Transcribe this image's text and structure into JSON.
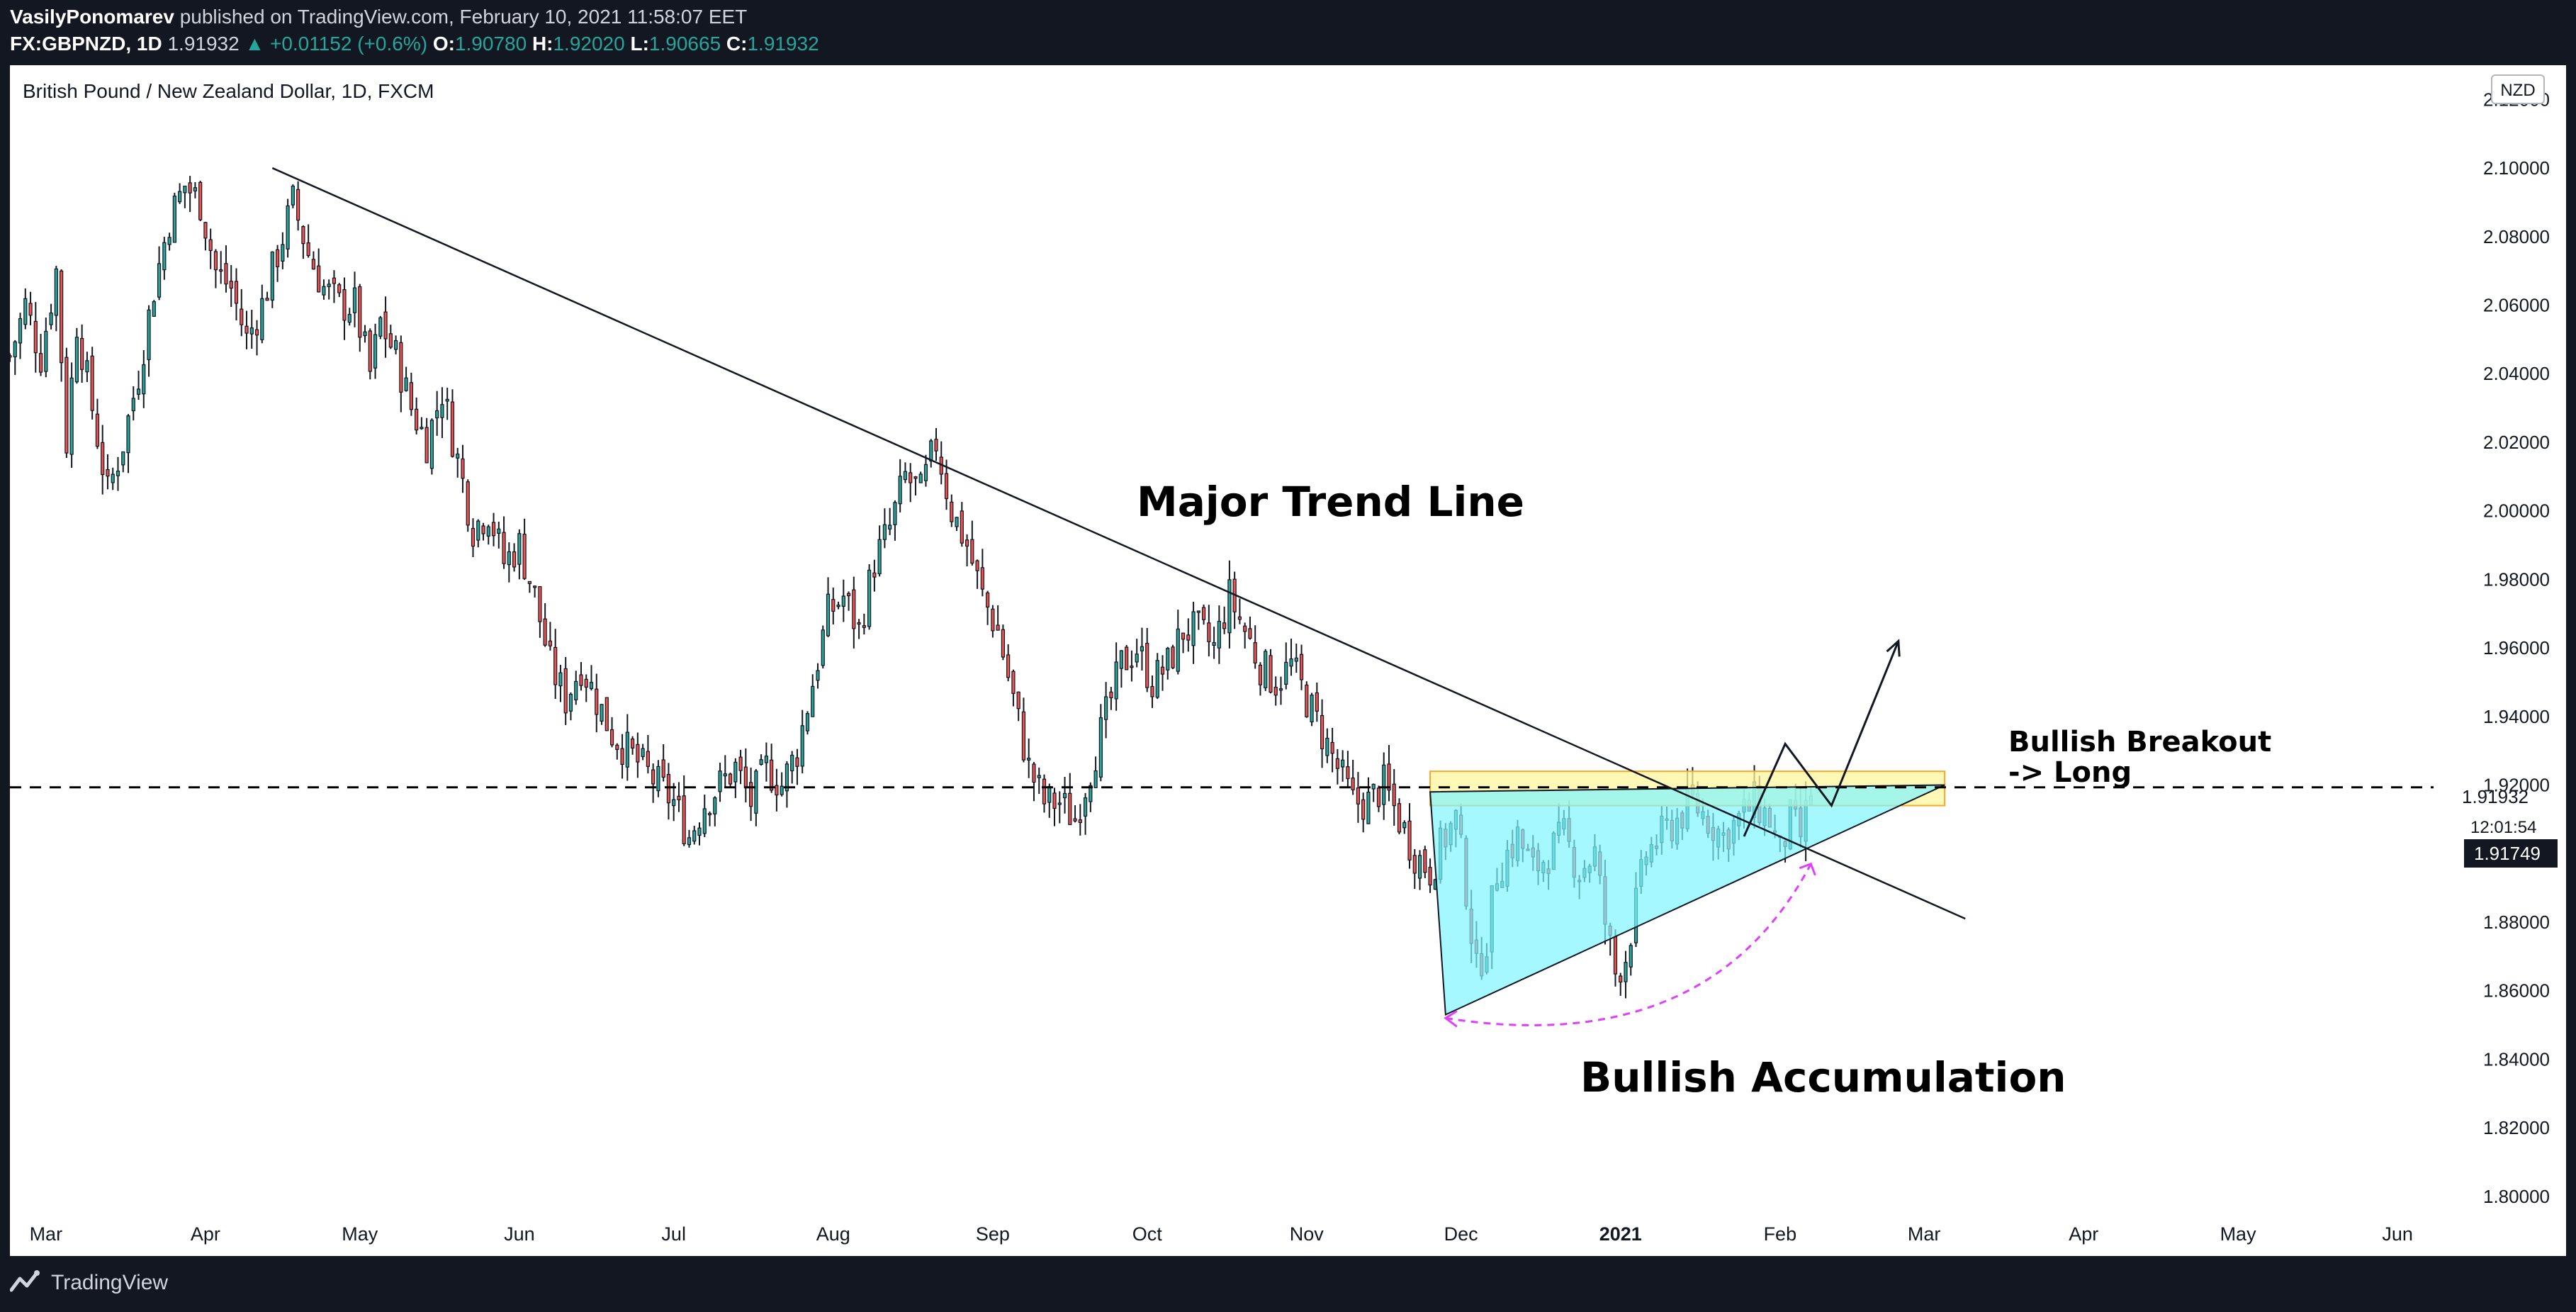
{
  "header": {
    "author": "VasilyPonomarev",
    "published_text": "published on TradingView.com, February 10, 2021 11:58:07 EET",
    "symbol": "FX:GBPNZD, 1D",
    "last": "1.91932",
    "change": "▲ +0.01152 (+0.6%)",
    "o_label": "O:",
    "o_value": "1.90780",
    "h_label": "H:",
    "h_value": "1.92020",
    "l_label": "L:",
    "l_value": "1.90665",
    "c_label": "C:",
    "c_value": "1.91932"
  },
  "chart": {
    "instrument_title": "British Pound / New Zealand Dollar, 1D, FXCM",
    "currency_badge": "NZD",
    "last_price_label": "1.91932",
    "countdown": "12:01:54",
    "marker_price_label": "1.91749"
  },
  "annotations": {
    "major_trend_line": "Major Trend Line",
    "bullish_breakout_line1": "Bullish Breakout",
    "bullish_breakout_line2": "-> Long",
    "bullish_accumulation": "Bullish Accumulation"
  },
  "colors": {
    "up": "#26a69a",
    "down": "#ef5350",
    "background": "#ffffff",
    "frame": "#131722",
    "triangle_fill": "#7ff5ff",
    "resistance_zone": "#fff59d",
    "resistance_border": "#f9a825",
    "curve": "#e040fb"
  },
  "footer": {
    "logo_text": "TradingView"
  },
  "chart_data": {
    "type": "candlestick",
    "y_range": [
      1.795,
      2.13
    ],
    "x_range": [
      0,
      471
    ],
    "y_ticks": [
      "2.12000",
      "2.10000",
      "2.08000",
      "2.06000",
      "2.04000",
      "2.02000",
      "2.00000",
      "1.98000",
      "1.96000",
      "1.94000",
      "1.92000",
      "1.90000",
      "1.88000",
      "1.86000",
      "1.84000",
      "1.82000",
      "1.80000"
    ],
    "x_ticks": [
      {
        "label": "Mar",
        "x": 7
      },
      {
        "label": "Apr",
        "x": 38
      },
      {
        "label": "May",
        "x": 68
      },
      {
        "label": "Jun",
        "x": 99
      },
      {
        "label": "Jul",
        "x": 129
      },
      {
        "label": "Aug",
        "x": 160
      },
      {
        "label": "Sep",
        "x": 191
      },
      {
        "label": "Oct",
        "x": 221
      },
      {
        "label": "Nov",
        "x": 252
      },
      {
        "label": "Dec",
        "x": 282
      },
      {
        "label": "2021",
        "x": 313
      },
      {
        "label": "Feb",
        "x": 344
      },
      {
        "label": "Mar",
        "x": 372
      },
      {
        "label": "Apr",
        "x": 403
      },
      {
        "label": "May",
        "x": 433
      },
      {
        "label": "Jun",
        "x": 464
      }
    ],
    "price_path": [
      [
        0,
        2.045
      ],
      [
        3,
        2.06
      ],
      [
        6,
        2.045
      ],
      [
        9,
        2.07
      ],
      [
        11,
        2.02
      ],
      [
        13,
        2.055
      ],
      [
        16,
        2.03
      ],
      [
        19,
        2.005
      ],
      [
        22,
        2.02
      ],
      [
        25,
        2.04
      ],
      [
        28,
        2.065
      ],
      [
        31,
        2.085
      ],
      [
        34,
        2.095
      ],
      [
        37,
        2.09
      ],
      [
        40,
        2.07
      ],
      [
        43,
        2.065
      ],
      [
        46,
        2.05
      ],
      [
        49,
        2.06
      ],
      [
        52,
        2.075
      ],
      [
        55,
        2.09
      ],
      [
        58,
        2.075
      ],
      [
        61,
        2.065
      ],
      [
        64,
        2.06
      ],
      [
        67,
        2.06
      ],
      [
        70,
        2.04
      ],
      [
        72,
        2.055
      ],
      [
        75,
        2.045
      ],
      [
        78,
        2.03
      ],
      [
        81,
        2.02
      ],
      [
        84,
        2.035
      ],
      [
        87,
        2.015
      ],
      [
        90,
        1.995
      ],
      [
        93,
        2.0
      ],
      [
        96,
        1.985
      ],
      [
        99,
        1.99
      ],
      [
        102,
        1.975
      ],
      [
        105,
        1.955
      ],
      [
        108,
        1.945
      ],
      [
        111,
        1.955
      ],
      [
        114,
        1.945
      ],
      [
        117,
        1.935
      ],
      [
        120,
        1.93
      ],
      [
        123,
        1.925
      ],
      [
        126,
        1.92
      ],
      [
        129,
        1.915
      ],
      [
        132,
        1.905
      ],
      [
        135,
        1.915
      ],
      [
        138,
        1.92
      ],
      [
        141,
        1.925
      ],
      [
        144,
        1.915
      ],
      [
        147,
        1.925
      ],
      [
        150,
        1.92
      ],
      [
        153,
        1.93
      ],
      [
        156,
        1.95
      ],
      [
        159,
        1.97
      ],
      [
        162,
        1.975
      ],
      [
        165,
        1.965
      ],
      [
        168,
        1.985
      ],
      [
        171,
        1.995
      ],
      [
        174,
        2.01
      ],
      [
        177,
        2.005
      ],
      [
        180,
        2.02
      ],
      [
        183,
        2.0
      ],
      [
        186,
        1.99
      ],
      [
        189,
        1.975
      ],
      [
        192,
        1.965
      ],
      [
        195,
        1.945
      ],
      [
        198,
        1.925
      ],
      [
        201,
        1.915
      ],
      [
        204,
        1.915
      ],
      [
        207,
        1.91
      ],
      [
        210,
        1.925
      ],
      [
        213,
        1.94
      ],
      [
        216,
        1.955
      ],
      [
        219,
        1.96
      ],
      [
        222,
        1.95
      ],
      [
        225,
        1.955
      ],
      [
        228,
        1.965
      ],
      [
        231,
        1.965
      ],
      [
        234,
        1.96
      ],
      [
        237,
        1.975
      ],
      [
        240,
        1.965
      ],
      [
        243,
        1.955
      ],
      [
        246,
        1.95
      ],
      [
        249,
        1.955
      ],
      [
        252,
        1.945
      ],
      [
        255,
        1.935
      ],
      [
        258,
        1.925
      ],
      [
        261,
        1.915
      ],
      [
        264,
        1.915
      ],
      [
        267,
        1.92
      ],
      [
        270,
        1.91
      ],
      [
        273,
        1.9
      ],
      [
        276,
        1.895
      ],
      [
        279,
        1.905
      ],
      [
        281,
        1.91
      ],
      [
        283,
        1.89
      ],
      [
        285,
        1.865
      ],
      [
        287,
        1.875
      ],
      [
        289,
        1.895
      ],
      [
        291,
        1.9
      ],
      [
        293,
        1.905
      ],
      [
        296,
        1.895
      ],
      [
        299,
        1.9
      ],
      [
        302,
        1.905
      ],
      [
        305,
        1.895
      ],
      [
        308,
        1.9
      ],
      [
        310,
        1.88
      ],
      [
        312,
        1.865
      ],
      [
        314,
        1.87
      ],
      [
        316,
        1.885
      ],
      [
        318,
        1.9
      ],
      [
        321,
        1.905
      ],
      [
        324,
        1.91
      ],
      [
        327,
        1.915
      ],
      [
        330,
        1.91
      ],
      [
        333,
        1.905
      ],
      [
        336,
        1.91
      ],
      [
        339,
        1.915
      ],
      [
        342,
        1.91
      ],
      [
        344,
        1.9
      ],
      [
        346,
        1.91
      ],
      [
        348,
        1.905
      ],
      [
        350,
        1.918
      ]
    ],
    "overlays": {
      "major_trend_line": [
        [
          51,
          2.1
        ],
        [
          380,
          1.881
        ]
      ],
      "horizontal_level": 1.91932,
      "resistance_zone": {
        "x": [
          276,
          376
        ],
        "y": [
          1.914,
          1.924
        ]
      },
      "triangle": [
        [
          279,
          1.853
        ],
        [
          376,
          1.92
        ],
        [
          276,
          1.918
        ]
      ],
      "projection_path": [
        [
          337,
          1.905
        ],
        [
          345,
          1.932
        ],
        [
          354,
          1.914
        ],
        [
          367,
          1.962
        ]
      ],
      "arc_curve": {
        "from": [
          279,
          1.852
        ],
        "ctrl": [
          330,
          1.84
        ],
        "to": [
          350,
          1.897
        ]
      }
    }
  }
}
